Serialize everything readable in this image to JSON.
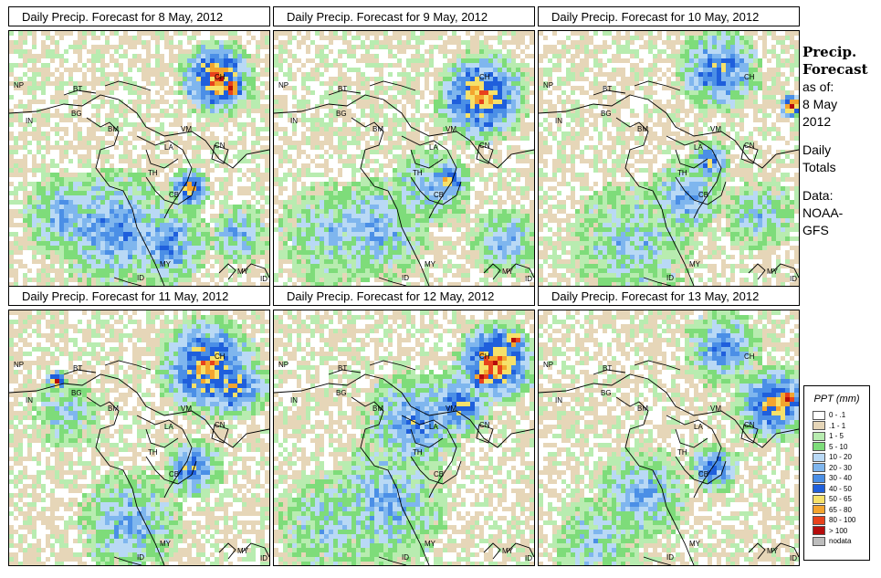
{
  "panels": [
    {
      "title": "Daily Precip. Forecast for  8 May, 2012"
    },
    {
      "title": "Daily Precip. Forecast for  9 May, 2012"
    },
    {
      "title": "Daily Precip. Forecast for  10 May, 2012"
    },
    {
      "title": "Daily Precip. Forecast for  11 May, 2012"
    },
    {
      "title": "Daily Precip. Forecast for  12 May, 2012"
    },
    {
      "title": "Daily Precip. Forecast for  13 May, 2012"
    }
  ],
  "map_labels": [
    "NP",
    "BT",
    "BG",
    "IN",
    "BM",
    "CH",
    "VM",
    "LA",
    "CN",
    "TH",
    "CB",
    "MY",
    "ID",
    "MY",
    "ID"
  ],
  "side": {
    "heading_1": "Precip.",
    "heading_2": "Forecast",
    "asof": "as of:",
    "date_1": "8 May",
    "date_2": "2012",
    "daily_1": "Daily",
    "daily_2": "Totals",
    "data_1": "Data:",
    "data_2": "NOAA-",
    "data_3": "GFS"
  },
  "legend": {
    "title": "PPT (mm)",
    "items": [
      {
        "label": "0 - .1",
        "color": "#ffffff"
      },
      {
        "label": ".1 - 1",
        "color": "#e6d6b8"
      },
      {
        "label": "1 - 5",
        "color": "#b8ecb0"
      },
      {
        "label": "5 - 10",
        "color": "#7edc7a"
      },
      {
        "label": "10 - 20",
        "color": "#b9d9f5"
      },
      {
        "label": "20 - 30",
        "color": "#7fb6ee"
      },
      {
        "label": "30 - 40",
        "color": "#4b8fe6"
      },
      {
        "label": "40 - 50",
        "color": "#1f5fdc"
      },
      {
        "label": "50 - 65",
        "color": "#f6e16a"
      },
      {
        "label": "65 - 80",
        "color": "#f3a52f"
      },
      {
        "label": "80 - 100",
        "color": "#e8421c"
      },
      {
        "label": "> 100",
        "color": "#b50c0c"
      },
      {
        "label": "nodata",
        "color": "#bdbdbd"
      }
    ]
  }
}
